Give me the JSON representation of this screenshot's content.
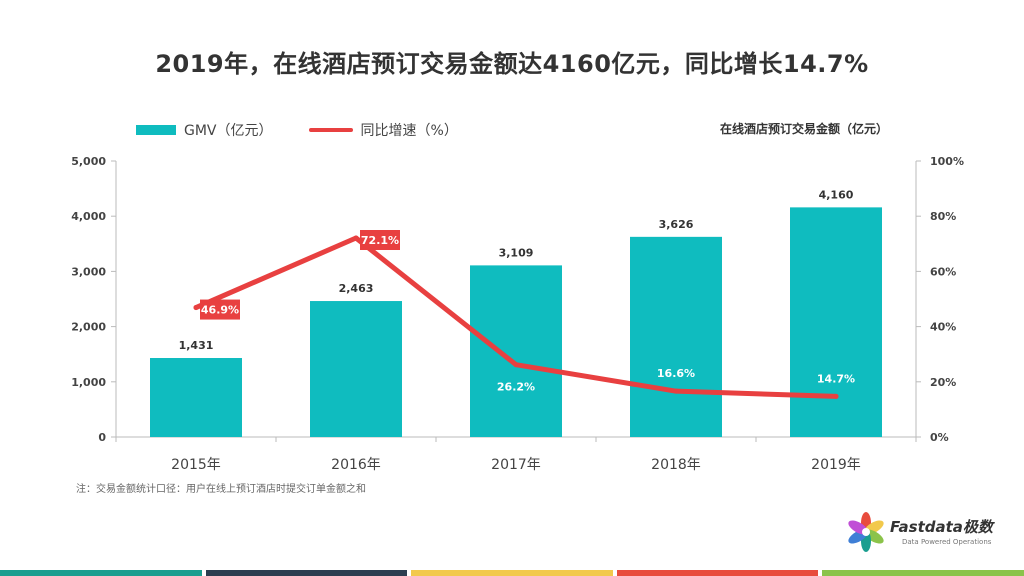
{
  "title": "2019年，在线酒店预订交易金额达4160亿元，同比增长14.7%",
  "unit_label": "在线酒店预订交易金额（亿元）",
  "note": "注：交易金额统计口径：用户在线上预订酒店时提交订单金额之和",
  "brand": {
    "name": "Fastdata极数",
    "tagline": "Data Powered Operations"
  },
  "colors": {
    "bar": "#0fbcbf",
    "line": "#e84040",
    "axis": "#bbbbbb",
    "bottom": [
      "#1a9e8f",
      "#2c3e50",
      "#f2c94c",
      "#e84c3d",
      "#8bc34a"
    ]
  },
  "chart_data": {
    "type": "bar",
    "categories": [
      "2015年",
      "2016年",
      "2017年",
      "2018年",
      "2019年"
    ],
    "series": [
      {
        "name": "GMV（亿元）",
        "type": "bar",
        "axis": "left",
        "values": [
          1431,
          2463,
          3109,
          3626,
          4160
        ],
        "labels": [
          "1,431",
          "2,463",
          "3,109",
          "3,626",
          "4,160"
        ]
      },
      {
        "name": "同比增速（%）",
        "type": "line",
        "axis": "right",
        "values": [
          46.9,
          72.1,
          26.2,
          16.6,
          14.7
        ],
        "labels": [
          "46.9%",
          "72.1%",
          "26.2%",
          "16.6%",
          "14.7%"
        ]
      }
    ],
    "y_left": {
      "ylim": [
        0,
        5000
      ],
      "ticks": [
        "0",
        "1,000",
        "2,000",
        "3,000",
        "4,000",
        "5,000"
      ]
    },
    "y_right": {
      "ylim": [
        0,
        100
      ],
      "ticks": [
        "0%",
        "20%",
        "40%",
        "60%",
        "80%",
        "100%"
      ]
    },
    "legend": "top-left",
    "grid": false
  }
}
